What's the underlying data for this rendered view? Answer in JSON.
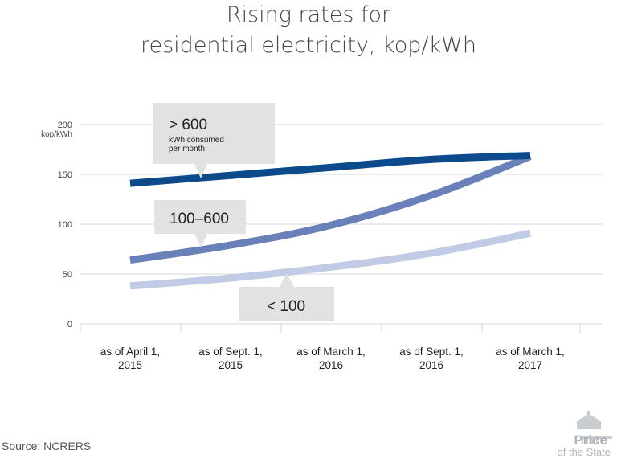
{
  "title_line1": "Rising rates for",
  "title_line2": "residential electricity, kop/kWh",
  "source": "Source: NCRERS",
  "logo": {
    "word1": "Price",
    "word2": "of the State"
  },
  "chart_data": {
    "type": "line",
    "title": "Rising rates for residential electricity, kop/kWh",
    "ylabel": "kop/kWh",
    "ylim": [
      0,
      200
    ],
    "yticks": [
      "0",
      "50",
      "100",
      "150",
      "200"
    ],
    "grid": true,
    "categories": [
      [
        "as of April 1,",
        "2015"
      ],
      [
        "as of Sept. 1,",
        "2015"
      ],
      [
        "as of March 1,",
        "2016"
      ],
      [
        "as of Sept. 1,",
        "2016"
      ],
      [
        "as of March 1,",
        "2017"
      ]
    ],
    "series": [
      {
        "name": "> 600",
        "sublabel1": "kWh consumed",
        "sublabel2": "per month",
        "color": "#0d4a8c",
        "values": [
          141,
          149,
          157,
          165,
          169
        ]
      },
      {
        "name": "100–600",
        "color": "#6a80b9",
        "values": [
          64,
          79,
          99,
          129,
          168
        ]
      },
      {
        "name": "< 100",
        "color": "#c2cbe5",
        "values": [
          38,
          46,
          57,
          71,
          91
        ]
      }
    ]
  }
}
